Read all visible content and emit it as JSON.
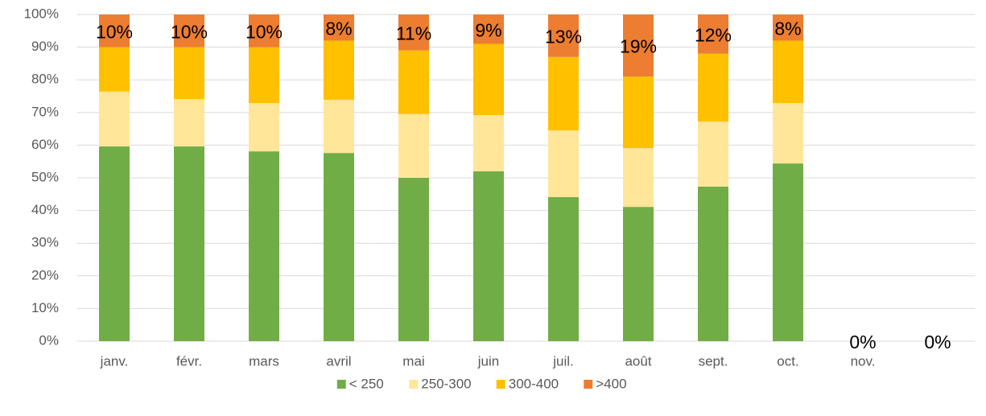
{
  "chart_data": {
    "type": "stacked_bar",
    "categories": [
      "janv.",
      "févr.",
      "mars",
      "avril",
      "mai",
      "juin",
      "juil.",
      "août",
      "sept.",
      "oct.",
      "nov.",
      null
    ],
    "series": [
      {
        "name": "< 250",
        "color": "#70ad47",
        "values": [
          59.6,
          59.6,
          58.1,
          57.6,
          50,
          52,
          44.1,
          41.1,
          47.3,
          54.4,
          0,
          0
        ]
      },
      {
        "name": "250-300",
        "color": "#ffe699",
        "values": [
          16.8,
          14.5,
          14.8,
          16.3,
          19.5,
          17.2,
          20.4,
          18,
          19.9,
          18.5,
          0,
          0
        ]
      },
      {
        "name": "300-400",
        "color": "#ffc000",
        "values": [
          13.6,
          15.9,
          17.1,
          18.1,
          19.5,
          21.8,
          22.5,
          21.9,
          20.8,
          19.1,
          0,
          0
        ]
      },
      {
        "name": ">400",
        "color": "#ed7d31",
        "values": [
          10,
          10,
          10,
          8,
          11,
          9,
          13,
          19,
          12,
          8,
          0,
          0
        ],
        "value_labels": [
          "10%",
          "10%",
          "10%",
          "8%",
          "11%",
          "9%",
          "13%",
          "19%",
          "12%",
          "8%",
          "0%",
          "0%"
        ]
      }
    ],
    "ylim": [
      0,
      100
    ],
    "yticks": [
      {
        "value": 0,
        "label": "0%"
      },
      {
        "value": 10,
        "label": "10%"
      },
      {
        "value": 20,
        "label": "20%"
      },
      {
        "value": 30,
        "label": "30%"
      },
      {
        "value": 40,
        "label": "40%"
      },
      {
        "value": 50,
        "label": "50%"
      },
      {
        "value": 60,
        "label": "60%"
      },
      {
        "value": 70,
        "label": "70%"
      },
      {
        "value": 80,
        "label": "80%"
      },
      {
        "value": 90,
        "label": "90%"
      },
      {
        "value": 100,
        "label": "100%"
      }
    ],
    "grid": true,
    "legend": "bottom"
  }
}
